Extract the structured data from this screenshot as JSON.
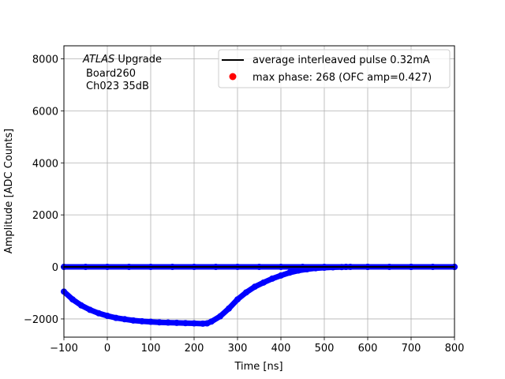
{
  "chart_data": {
    "type": "scatter",
    "title": "",
    "xlabel": "Time [ns]",
    "ylabel": "Amplitude [ADC Counts]",
    "xlim": [
      -100,
      800
    ],
    "ylim": [
      -2700,
      8500
    ],
    "xticks": [
      -100,
      0,
      100,
      200,
      300,
      400,
      500,
      600,
      700,
      800
    ],
    "yticks": [
      -2000,
      0,
      2000,
      4000,
      6000,
      8000
    ],
    "grid": true,
    "legend_position": "top-right",
    "annotation": {
      "line1_italic": "ATLAS",
      "line1_rest": " Upgrade",
      "line2": "Board260",
      "line3": "Ch023 35dB"
    },
    "series": [
      {
        "name": "average interleaved pulse 0.32mA",
        "kind": "line",
        "color": "#000000",
        "x": [
          -100,
          800
        ],
        "y": [
          0,
          0
        ]
      },
      {
        "name": "max phase: 268 (OFC amp=0.427)",
        "kind": "scatter",
        "color": "#ff0000",
        "x": [],
        "y": []
      },
      {
        "name": "",
        "kind": "scatter",
        "color": "#0000ff",
        "x": [
          -100,
          -80,
          -60,
          -40,
          -20,
          0,
          20,
          40,
          60,
          80,
          100,
          120,
          140,
          160,
          180,
          200,
          220,
          230,
          240,
          260,
          280,
          300,
          320,
          340,
          360,
          380,
          400,
          420,
          440,
          460,
          480,
          500,
          520,
          540,
          560,
          600,
          700,
          800
        ],
        "y": [
          -950,
          -1250,
          -1480,
          -1650,
          -1780,
          -1880,
          -1960,
          -2010,
          -2060,
          -2090,
          -2110,
          -2130,
          -2140,
          -2150,
          -2160,
          -2170,
          -2180,
          -2170,
          -2100,
          -1900,
          -1600,
          -1250,
          -980,
          -760,
          -600,
          -450,
          -330,
          -220,
          -140,
          -90,
          -50,
          -30,
          -15,
          -5,
          0,
          0,
          0,
          0
        ]
      },
      {
        "name": "",
        "kind": "scatter",
        "color": "#0000ff",
        "x": [
          -100,
          -50,
          0,
          50,
          100,
          150,
          200,
          250,
          300,
          350,
          400,
          450,
          500,
          550,
          600,
          650,
          700,
          750,
          800
        ],
        "y": [
          0,
          0,
          0,
          0,
          0,
          0,
          0,
          0,
          0,
          0,
          0,
          0,
          0,
          0,
          0,
          0,
          0,
          0,
          0
        ]
      }
    ]
  }
}
